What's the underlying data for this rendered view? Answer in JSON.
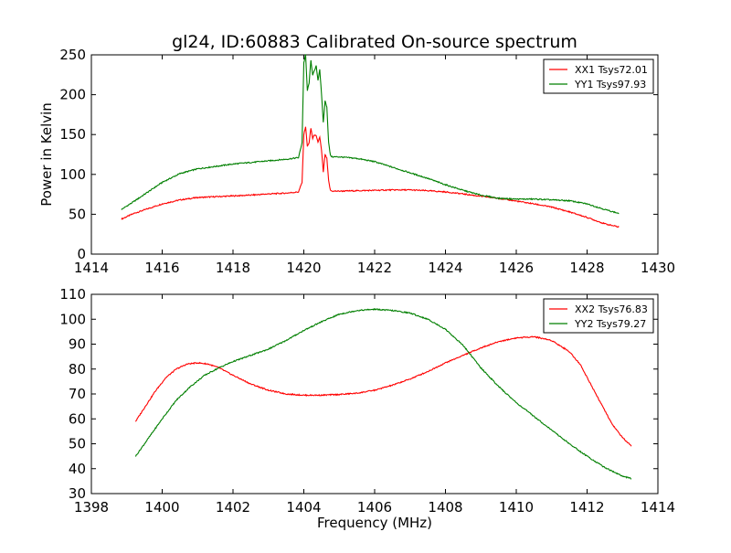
{
  "figure": {
    "title": "gl24, ID:60883 Calibrated On-source spectrum",
    "ylabel": "Power in Kelvin",
    "xlabel": "Frequency (MHz)"
  },
  "chart_data": [
    {
      "type": "line",
      "title": "gl24, ID:60883 Calibrated On-source spectrum",
      "xlabel": "",
      "ylabel": "Power in Kelvin",
      "xlim": [
        1414,
        1430
      ],
      "ylim": [
        0,
        250
      ],
      "xticks": [
        1414,
        1416,
        1418,
        1420,
        1422,
        1424,
        1426,
        1428,
        1430
      ],
      "yticks": [
        0,
        50,
        100,
        150,
        200,
        250
      ],
      "grid": false,
      "legend": "top-right",
      "series": [
        {
          "name": "XX1 Tsys72.01",
          "color": "#ff0000",
          "x": [
            1414.85,
            1415.2,
            1415.6,
            1416.0,
            1416.5,
            1417.0,
            1417.5,
            1418.0,
            1418.5,
            1419.0,
            1419.5,
            1419.85,
            1419.95,
            1420.0,
            1420.05,
            1420.1,
            1420.15,
            1420.2,
            1420.25,
            1420.3,
            1420.35,
            1420.4,
            1420.45,
            1420.5,
            1420.55,
            1420.6,
            1420.65,
            1420.7,
            1420.75,
            1420.8,
            1421.0,
            1421.5,
            1422.0,
            1422.5,
            1423.0,
            1423.5,
            1424.0,
            1424.5,
            1425.0,
            1425.5,
            1426.0,
            1426.5,
            1427.0,
            1427.5,
            1428.0,
            1428.5,
            1428.9
          ],
          "y": [
            44,
            51,
            57,
            63,
            68,
            71,
            72,
            73,
            74,
            75.5,
            76.5,
            78,
            90,
            150,
            160,
            135,
            140,
            158,
            145,
            150,
            148,
            140,
            147,
            130,
            103,
            125,
            120,
            92,
            80,
            79,
            79,
            79.5,
            80,
            80.5,
            80.5,
            79.5,
            78,
            75.5,
            72.5,
            70,
            66.5,
            63,
            59,
            53,
            46,
            38,
            34
          ]
        },
        {
          "name": "YY1 Tsys97.93",
          "color": "#007f00",
          "x": [
            1414.85,
            1415.2,
            1415.6,
            1416.0,
            1416.5,
            1417.0,
            1417.5,
            1418.0,
            1418.5,
            1419.0,
            1419.5,
            1419.85,
            1419.95,
            1420.0,
            1420.05,
            1420.1,
            1420.15,
            1420.2,
            1420.25,
            1420.3,
            1420.35,
            1420.4,
            1420.45,
            1420.5,
            1420.55,
            1420.6,
            1420.65,
            1420.7,
            1420.75,
            1420.8,
            1421.0,
            1421.5,
            1422.0,
            1422.5,
            1423.0,
            1423.5,
            1424.0,
            1424.5,
            1425.0,
            1425.5,
            1426.0,
            1426.5,
            1427.0,
            1427.5,
            1428.0,
            1428.5,
            1428.9
          ],
          "y": [
            56,
            66,
            78,
            90,
            101,
            107,
            110,
            113,
            115,
            117,
            119,
            121,
            140,
            240,
            250,
            205,
            215,
            243,
            225,
            230,
            236,
            218,
            232,
            200,
            165,
            192,
            185,
            140,
            124,
            122,
            122,
            120,
            116,
            109,
            102,
            95,
            87,
            80,
            74,
            70,
            69,
            69,
            68,
            67,
            63,
            56,
            51
          ]
        }
      ]
    },
    {
      "type": "line",
      "title": "",
      "xlabel": "Frequency (MHz)",
      "ylabel": "",
      "xlim": [
        1398,
        1414
      ],
      "ylim": [
        30,
        110
      ],
      "xticks": [
        1398,
        1400,
        1402,
        1404,
        1406,
        1408,
        1410,
        1412,
        1414
      ],
      "yticks": [
        30,
        40,
        50,
        60,
        70,
        80,
        90,
        100,
        110
      ],
      "grid": false,
      "legend": "top-right",
      "series": [
        {
          "name": "XX2 Tsys76.83",
          "color": "#ff0000",
          "x": [
            1399.25,
            1399.5,
            1399.8,
            1400.1,
            1400.4,
            1400.7,
            1401.0,
            1401.3,
            1401.6,
            1402.0,
            1402.5,
            1403.0,
            1403.5,
            1404.0,
            1404.5,
            1405.0,
            1405.5,
            1406.0,
            1406.5,
            1407.0,
            1407.5,
            1408.0,
            1408.5,
            1409.0,
            1409.5,
            1410.0,
            1410.5,
            1411.0,
            1411.5,
            1411.8,
            1412.1,
            1412.4,
            1412.7,
            1413.0,
            1413.25
          ],
          "y": [
            59,
            64.5,
            71,
            76.5,
            80,
            82,
            82.5,
            82,
            80.5,
            77.5,
            74,
            71.5,
            70,
            69.5,
            69.5,
            69.8,
            70.3,
            71.5,
            73.5,
            76,
            79,
            82.5,
            85.5,
            88.5,
            91,
            92.5,
            93,
            91.5,
            87,
            82,
            74,
            66,
            58,
            52.5,
            49
          ]
        },
        {
          "name": "YY2 Tsys79.27",
          "color": "#007f00",
          "x": [
            1399.25,
            1399.6,
            1400.0,
            1400.4,
            1400.8,
            1401.2,
            1401.6,
            1402.0,
            1402.5,
            1403.0,
            1403.5,
            1404.0,
            1404.5,
            1405.0,
            1405.5,
            1406.0,
            1406.5,
            1407.0,
            1407.5,
            1408.0,
            1408.5,
            1409.0,
            1409.5,
            1410.0,
            1410.5,
            1411.0,
            1411.5,
            1412.0,
            1412.5,
            1413.0,
            1413.25
          ],
          "y": [
            45,
            52,
            60,
            67.5,
            73,
            77.5,
            80.5,
            83,
            85.5,
            88,
            91.5,
            95.5,
            99,
            102,
            103.5,
            104,
            103.5,
            102.5,
            100,
            96,
            89.5,
            80.5,
            73,
            66.5,
            61,
            55.5,
            50,
            45,
            40.5,
            37,
            36
          ]
        }
      ]
    }
  ]
}
